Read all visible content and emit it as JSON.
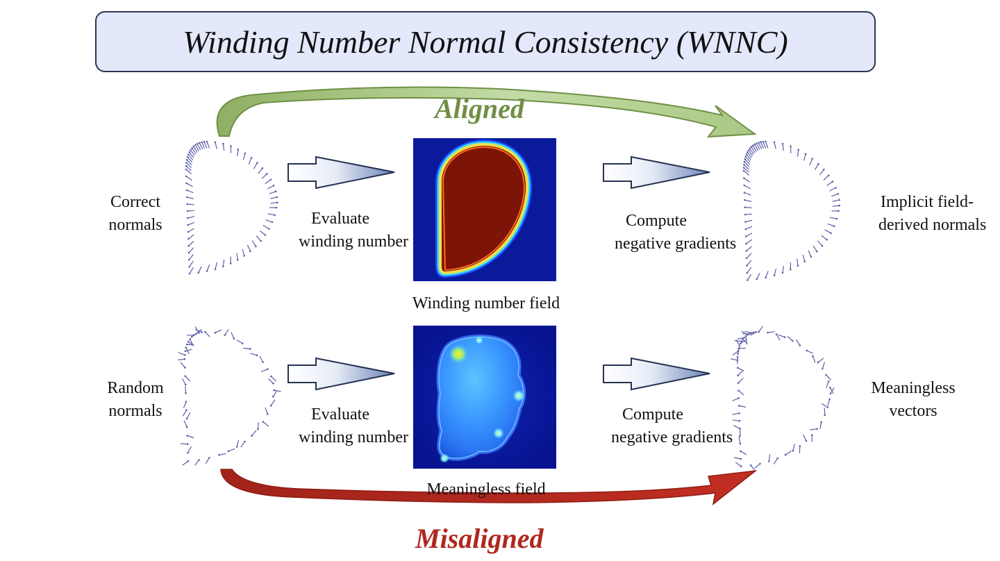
{
  "title": "Winding Number Normal Consistency (WNNC)",
  "colors": {
    "aligned": "#6f8f45",
    "misaligned": "#b0281e",
    "normals": "#5a5ea8",
    "process_arrow": "#24314f",
    "field_background": "#0a1a9a",
    "field_inside": "#7d1408",
    "title_background": "#e3e8fb"
  },
  "aligned_row": {
    "input_label": [
      "Correct",
      "normals"
    ],
    "step1_label": [
      "Evaluate",
      "winding number"
    ],
    "field_caption": "Winding number field",
    "step2_label": [
      "Compute",
      "negative gradients"
    ],
    "output_label": [
      "Implicit field-",
      "derived normals"
    ],
    "status": "Aligned"
  },
  "misaligned_row": {
    "input_label": [
      "Random",
      "normals"
    ],
    "step1_label": [
      "Evaluate",
      "winding number"
    ],
    "field_caption": "Meaningless field",
    "step2_label": [
      "Compute",
      "negative gradients"
    ],
    "output_label": [
      "Meaningless",
      "vectors"
    ],
    "status": "Misaligned"
  }
}
